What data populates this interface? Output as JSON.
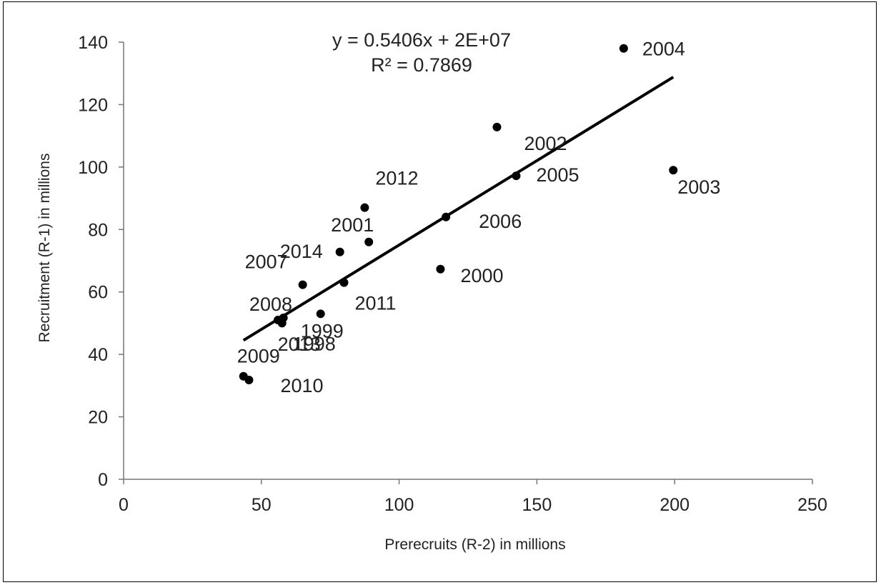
{
  "chart_data": {
    "type": "scatter",
    "title": "",
    "xlabel": "Prerecruits (R-2) in millions",
    "ylabel": "Recruitment  (R-1) in millions",
    "xlim": [
      0,
      250
    ],
    "ylim": [
      0,
      140
    ],
    "x_ticks": [
      0,
      50,
      100,
      150,
      200,
      250
    ],
    "y_ticks": [
      0,
      20,
      40,
      60,
      80,
      100,
      120,
      140
    ],
    "grid": false,
    "legend": "none",
    "marker_color": "#000000",
    "points": [
      {
        "label": "1998",
        "x": 57.5,
        "y": 50
      },
      {
        "label": "1999",
        "x": 71.5,
        "y": 53
      },
      {
        "label": "2000",
        "x": 115,
        "y": 67.3
      },
      {
        "label": "2001",
        "x": 89,
        "y": 76
      },
      {
        "label": "2002",
        "x": 135.5,
        "y": 112.8
      },
      {
        "label": "2003",
        "x": 199.5,
        "y": 99
      },
      {
        "label": "2004",
        "x": 181.5,
        "y": 138
      },
      {
        "label": "2005",
        "x": 142.5,
        "y": 97.2
      },
      {
        "label": "2006",
        "x": 117,
        "y": 84
      },
      {
        "label": "2007",
        "x": 65,
        "y": 62.3
      },
      {
        "label": "2008",
        "x": 56,
        "y": 51
      },
      {
        "label": "2009",
        "x": 43.5,
        "y": 33
      },
      {
        "label": "2010",
        "x": 45.5,
        "y": 31.8
      },
      {
        "label": "2011",
        "x": 80,
        "y": 63
      },
      {
        "label": "2012",
        "x": 87.5,
        "y": 87
      },
      {
        "label": "2013",
        "x": 58,
        "y": 51.7
      },
      {
        "label": "2014",
        "x": 78.5,
        "y": 72.8
      }
    ],
    "trendline": {
      "type": "linear",
      "x_range": [
        43.5,
        199.5
      ],
      "y_range": [
        44.5,
        128.8
      ],
      "equation_text": "y = 0.5406x + 2E+07",
      "r2_text": "R² = 0.7869"
    }
  }
}
